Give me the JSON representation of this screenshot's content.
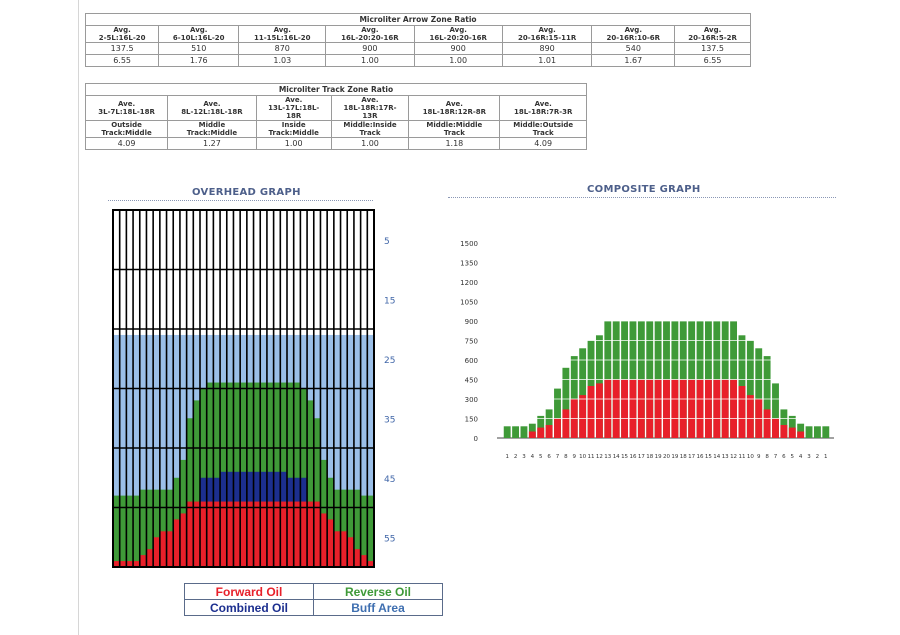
{
  "arrow_table": {
    "title": "Microliter Arrow Zone Ratio",
    "headers": [
      [
        "Avg.",
        "2-5L:16L-20"
      ],
      [
        "Avg.",
        "6-10L:16L-20"
      ],
      [
        "Avg.",
        "11-15L:16L-20"
      ],
      [
        "Avg.",
        "16L-20:20-16R"
      ],
      [
        "Avg.",
        "16L-20:20-16R"
      ],
      [
        "Avg.",
        "20-16R:15-11R"
      ],
      [
        "Avg.",
        "20-16R:10-6R"
      ],
      [
        "Avg.",
        "20-16R:5-2R"
      ]
    ],
    "row1": [
      "137.5",
      "510",
      "870",
      "900",
      "900",
      "890",
      "540",
      "137.5"
    ],
    "row2": [
      "6.55",
      "1.76",
      "1.03",
      "1.00",
      "1.00",
      "1.01",
      "1.67",
      "6.55"
    ]
  },
  "track_table": {
    "title": "Microliter Track Zone Ratio",
    "headers": [
      [
        "Ave.",
        "3L-7L:18L-18R"
      ],
      [
        "Ave.",
        "8L-12L:18L-18R"
      ],
      [
        "Ave.",
        "13L-17L:18L-",
        "18R"
      ],
      [
        "Ave.",
        "18L-18R:17R-",
        "13R"
      ],
      [
        "Ave.",
        "18L-18R:12R-8R"
      ],
      [
        "Ave.",
        "18L-18R:7R-3R"
      ]
    ],
    "labels": [
      [
        "Outside",
        "Track:Middle"
      ],
      [
        "Middle",
        "Track:Middle"
      ],
      [
        "Inside",
        "Track:Middle"
      ],
      [
        "Middle:Inside",
        "Track"
      ],
      [
        "Middle:Middle",
        "Track"
      ],
      [
        "Middle:Outside",
        "Track"
      ]
    ],
    "values": [
      "4.09",
      "1.27",
      "1.00",
      "1.00",
      "1.18",
      "4.09"
    ]
  },
  "overhead": {
    "title": "OVERHEAD GRAPH",
    "yticks": [
      "55",
      "45",
      "35",
      "25",
      "15",
      "5"
    ]
  },
  "composite": {
    "title": "COMPOSITE GRAPH"
  },
  "legend": {
    "forward": "Forward Oil",
    "reverse": "Reverse Oil",
    "combined": "Combined Oil",
    "buff": "Buff Area"
  },
  "colors": {
    "forward": "#e8202a",
    "reverse": "#3f9a38",
    "combined": "#1c2f8f",
    "buff": "#9bbfe8",
    "axis_text": "#4066a8",
    "legend_border": "#5a6b8a"
  },
  "chart_data": [
    {
      "type": "bar",
      "title": "OVERHEAD GRAPH",
      "layers": [
        "Forward Oil",
        "Combined Oil",
        "Reverse Oil",
        "Buff Area"
      ],
      "boards": 39,
      "ylim": [
        0,
        60
      ],
      "yticks": [
        5,
        15,
        25,
        35,
        45,
        55
      ],
      "buff_height": 39,
      "forward": [
        1,
        1,
        1,
        1,
        2,
        3,
        5,
        6,
        6,
        8,
        9,
        11,
        11,
        11,
        11,
        11,
        11,
        11,
        11,
        11,
        11,
        11,
        11,
        11,
        11,
        11,
        11,
        11,
        11,
        11,
        11,
        9,
        8,
        6,
        6,
        5,
        3,
        2,
        1
      ],
      "combined": [
        0,
        0,
        0,
        0,
        0,
        0,
        0,
        0,
        0,
        0,
        0,
        0,
        0,
        15,
        15,
        15,
        16,
        16,
        16,
        16,
        16,
        16,
        16,
        16,
        16,
        16,
        15,
        15,
        15,
        0,
        0,
        0,
        0,
        0,
        0,
        0,
        0,
        0,
        0
      ],
      "reverse": [
        12,
        12,
        12,
        12,
        13,
        13,
        13,
        13,
        13,
        15,
        18,
        25,
        28,
        30,
        31,
        31,
        31,
        31,
        31,
        31,
        31,
        31,
        31,
        31,
        31,
        31,
        31,
        31,
        30,
        28,
        25,
        18,
        15,
        13,
        13,
        13,
        13,
        12,
        12
      ]
    },
    {
      "type": "bar",
      "title": "COMPOSITE GRAPH",
      "x": [
        "1",
        "2",
        "3",
        "4",
        "5",
        "6",
        "7",
        "8",
        "9",
        "10",
        "11",
        "12",
        "13",
        "14",
        "15",
        "16",
        "17",
        "18",
        "19",
        "20",
        "19",
        "18",
        "17",
        "16",
        "15",
        "14",
        "13",
        "12",
        "11",
        "10",
        "9",
        "8",
        "7",
        "6",
        "5",
        "4",
        "3",
        "2",
        "1"
      ],
      "ylim": [
        0,
        1500
      ],
      "yticks": [
        0,
        150,
        300,
        450,
        600,
        750,
        900,
        1050,
        1200,
        1350,
        1500
      ],
      "series": [
        {
          "name": "Forward Oil",
          "values": [
            0,
            0,
            0,
            50,
            80,
            100,
            150,
            220,
            300,
            330,
            400,
            420,
            450,
            450,
            450,
            450,
            450,
            450,
            450,
            450,
            450,
            450,
            450,
            450,
            450,
            450,
            450,
            450,
            400,
            330,
            300,
            220,
            150,
            100,
            80,
            50,
            0,
            0,
            0
          ]
        },
        {
          "name": "Reverse Oil",
          "values": [
            90,
            90,
            90,
            110,
            170,
            220,
            380,
            540,
            630,
            690,
            750,
            790,
            900,
            900,
            900,
            900,
            900,
            900,
            900,
            900,
            900,
            900,
            900,
            900,
            900,
            900,
            900,
            900,
            790,
            750,
            690,
            630,
            420,
            220,
            170,
            110,
            90,
            90,
            90
          ]
        }
      ]
    }
  ]
}
